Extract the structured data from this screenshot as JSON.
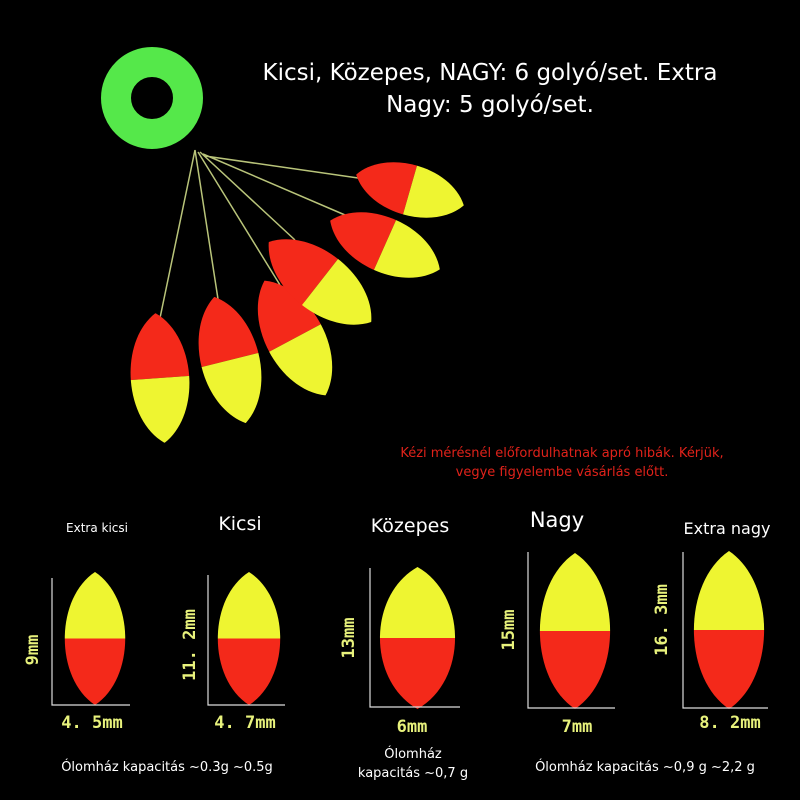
{
  "header": {
    "lines": [
      "Kicsi, Közepes, NAGY: 6 golyó/set. Extra",
      "Nagy: 5 golyó/set."
    ]
  },
  "notice": {
    "lines": [
      "Kézi mérésnél előfordulhatnak apró hibák. Kérjük,",
      "vegye figyelembe vásárlás előtt."
    ]
  },
  "sizes": [
    {
      "name": "Extra kicsi",
      "height": "9mm",
      "width": "4. 5mm"
    },
    {
      "name": "Kicsi",
      "height": "11. 2mm",
      "width": "4. 7mm"
    },
    {
      "name": "Közepes",
      "height": "13mm",
      "width": "6mm"
    },
    {
      "name": "Nagy",
      "height": "15mm",
      "width": "7mm"
    },
    {
      "name": "Extra nagy",
      "height": "16. 3mm",
      "width": "8. 2mm"
    }
  ],
  "capacity": [
    {
      "lines": [
        "Ólomház kapacitás ~0.3g ~0.5g"
      ]
    },
    {
      "lines": [
        "Ólomház",
        "kapacitás ~0,7 g"
      ]
    },
    {
      "lines": [
        "Ólomház kapacitás ~0,9 g ~2,2 g"
      ]
    }
  ]
}
